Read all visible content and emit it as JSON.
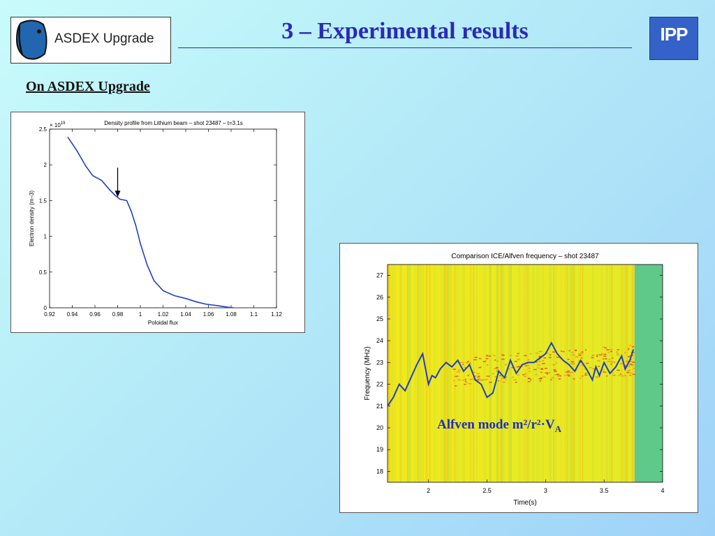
{
  "header": {
    "logo_text": "ASDEX Upgrade",
    "title": "3 – Experimental results",
    "ipp_logo": "IPP"
  },
  "subheading": "On ASDEX Upgrade",
  "colors": {
    "title": "#2a2ab8",
    "curve": "#1f3fbf",
    "ipp": "#3562c8"
  },
  "icons": {
    "logo": "asdex-plasma-icon",
    "arrow": "down-arrow-icon"
  },
  "chart_data": [
    {
      "type": "line",
      "title": "Density profile from Lithium beam  –  shot 23487  –  t=3.1s",
      "xlabel": "Poloidal flux",
      "ylabel": "Electron density (m–3)",
      "y_multiplier": "× 10^19",
      "y_multiplier_base": "× 10",
      "y_multiplier_exp": "19",
      "xlim": [
        0.92,
        1.12
      ],
      "ylim": [
        0,
        2.5
      ],
      "x_ticks": [
        "0.92",
        "0.94",
        "0.96",
        "0.98",
        "1",
        "1.02",
        "1.04",
        "1.06",
        "1.08",
        "1.1",
        "1.12"
      ],
      "y_ticks": [
        "0",
        "0.5",
        "1",
        "1.5",
        "2",
        "2.5"
      ],
      "grid": false,
      "arrow_at": {
        "x": 0.98,
        "y": 1.55
      },
      "x": [
        0.936,
        0.944,
        0.952,
        0.958,
        0.966,
        0.973,
        0.978,
        0.982,
        0.988,
        0.992,
        0.996,
        1.0,
        1.006,
        1.012,
        1.02,
        1.03,
        1.04,
        1.05,
        1.058,
        1.068,
        1.076,
        1.082
      ],
      "y": [
        2.39,
        2.2,
        1.98,
        1.85,
        1.78,
        1.65,
        1.57,
        1.52,
        1.5,
        1.35,
        1.15,
        0.9,
        0.6,
        0.38,
        0.24,
        0.17,
        0.13,
        0.08,
        0.05,
        0.03,
        0.01,
        0.0
      ]
    },
    {
      "type": "line",
      "title": "Comparison ICE/Alfven frequency  –  shot 23487",
      "xlabel": "Time(s)",
      "ylabel": "Frequency (MHz)",
      "xlim": [
        1.65,
        4.0
      ],
      "ylim": [
        17.5,
        27.5
      ],
      "x_ticks": [
        "2",
        "2.5",
        "3",
        "3.5",
        "4"
      ],
      "y_ticks": [
        "18",
        "19",
        "20",
        "21",
        "22",
        "23",
        "24",
        "25",
        "26",
        "27"
      ],
      "grid": false,
      "background": "spectrogram",
      "series": [
        {
          "name": "Alfven mode m²/r²·VA",
          "x": [
            1.65,
            1.7,
            1.75,
            1.8,
            1.85,
            1.9,
            1.95,
            2.0,
            2.03,
            2.06,
            2.1,
            2.15,
            2.2,
            2.25,
            2.3,
            2.35,
            2.4,
            2.45,
            2.5,
            2.55,
            2.6,
            2.65,
            2.7,
            2.75,
            2.8,
            2.85,
            2.9,
            2.95,
            3.0,
            3.05,
            3.1,
            3.15,
            3.2,
            3.25,
            3.3,
            3.35,
            3.4,
            3.43,
            3.46,
            3.5,
            3.55,
            3.6,
            3.65,
            3.68,
            3.72,
            3.75
          ],
          "y": [
            21.0,
            21.4,
            22.0,
            21.7,
            22.3,
            22.9,
            23.4,
            22.0,
            22.4,
            22.3,
            22.7,
            23.0,
            22.8,
            23.1,
            22.6,
            22.9,
            22.2,
            22.0,
            21.4,
            21.6,
            22.6,
            22.3,
            23.1,
            22.5,
            22.9,
            23.0,
            23.0,
            23.2,
            23.4,
            23.9,
            23.4,
            23.1,
            22.9,
            22.6,
            23.1,
            22.7,
            22.2,
            22.8,
            22.4,
            23.0,
            22.5,
            22.8,
            23.3,
            22.7,
            23.1,
            23.6
          ]
        }
      ],
      "annotation": {
        "text_main": "Alfven mode m²/r²·V",
        "text_sub": "A"
      }
    }
  ]
}
